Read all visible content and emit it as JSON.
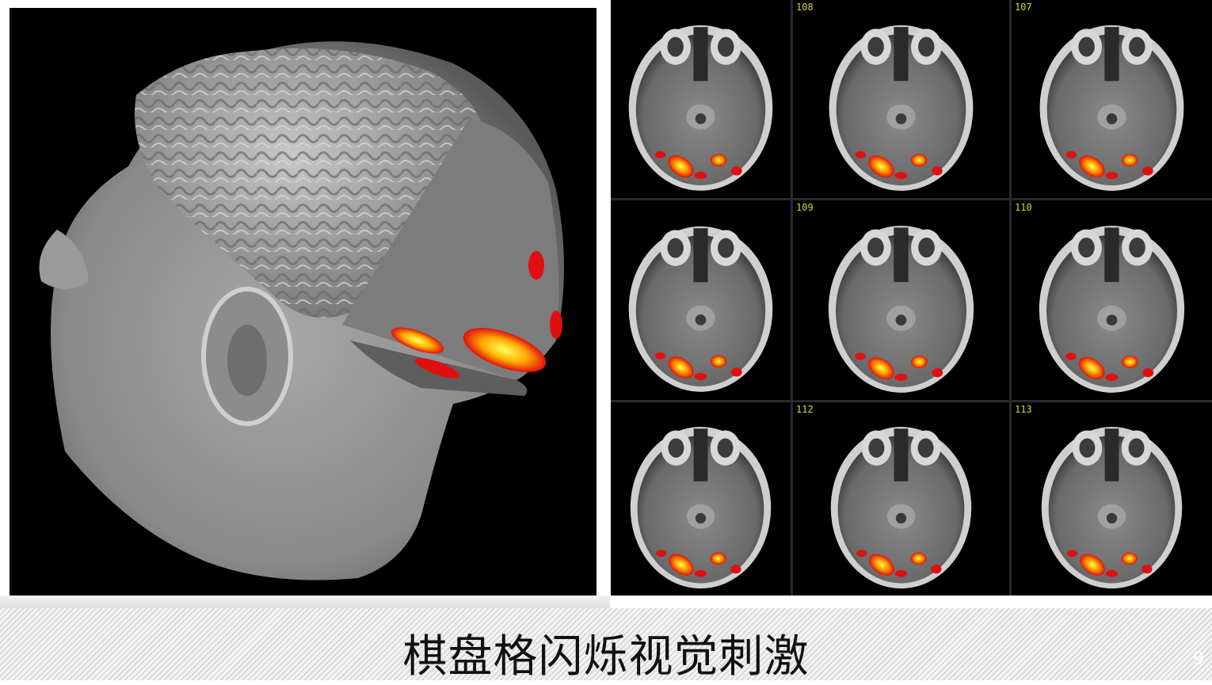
{
  "slide": {
    "caption": "棋盘格闪烁视觉刺激",
    "page_number": "9"
  },
  "left_figure": {
    "name": "3D head rendering with cutaway and activation"
  },
  "slices": [
    {
      "number": "108"
    },
    {
      "number": "107"
    },
    {
      "number": ""
    },
    {
      "number": "109"
    },
    {
      "number": "110"
    },
    {
      "number": ""
    },
    {
      "number": "112"
    },
    {
      "number": "113"
    },
    {
      "number": ""
    }
  ],
  "colors": {
    "background": "#000000",
    "activation_red": "#e01010",
    "activation_orange": "#ff8000",
    "activation_yellow": "#ffff40",
    "slice_label": "#d8d830"
  }
}
